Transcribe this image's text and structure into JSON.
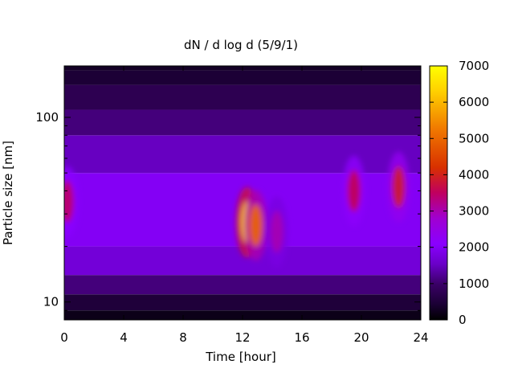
{
  "chart_data": {
    "type": "heatmap",
    "title": "dN / d log d (5/9/1)",
    "xlabel": "Time [hour]",
    "ylabel": "Particle size [nm]",
    "x_range": [
      0,
      24
    ],
    "y_range": [
      8,
      190
    ],
    "y_scale": "log",
    "x_ticks": [
      0,
      4,
      8,
      12,
      16,
      20,
      24
    ],
    "x_tick_labels": [
      "0",
      "4",
      "8",
      "12",
      "16",
      "20",
      "24"
    ],
    "y_ticks": [
      10,
      100
    ],
    "y_tick_labels": [
      "10",
      "100"
    ],
    "colorbar": {
      "range": [
        0,
        7000
      ],
      "ticks": [
        0,
        1000,
        2000,
        3000,
        4000,
        5000,
        6000,
        7000
      ],
      "tick_labels": [
        "0",
        "1000",
        "2000",
        "3000",
        "4000",
        "5000",
        "6000",
        "7000"
      ],
      "colormap": [
        "#000000",
        "#3a0066",
        "#6a00c8",
        "#8a00ff",
        "#b000b0",
        "#d83000",
        "#f07800",
        "#ffd000",
        "#ffff00"
      ]
    },
    "features": [
      {
        "time": 0.2,
        "size": 35,
        "peak": 3500
      },
      {
        "time": 12.3,
        "size": 27,
        "peak": 6200
      },
      {
        "time": 12.9,
        "size": 26,
        "peak": 5000
      },
      {
        "time": 14.3,
        "size": 24,
        "peak": 3000
      },
      {
        "time": 19.5,
        "size": 40,
        "peak": 3600
      },
      {
        "time": 22.5,
        "size": 42,
        "peak": 3900
      }
    ]
  }
}
